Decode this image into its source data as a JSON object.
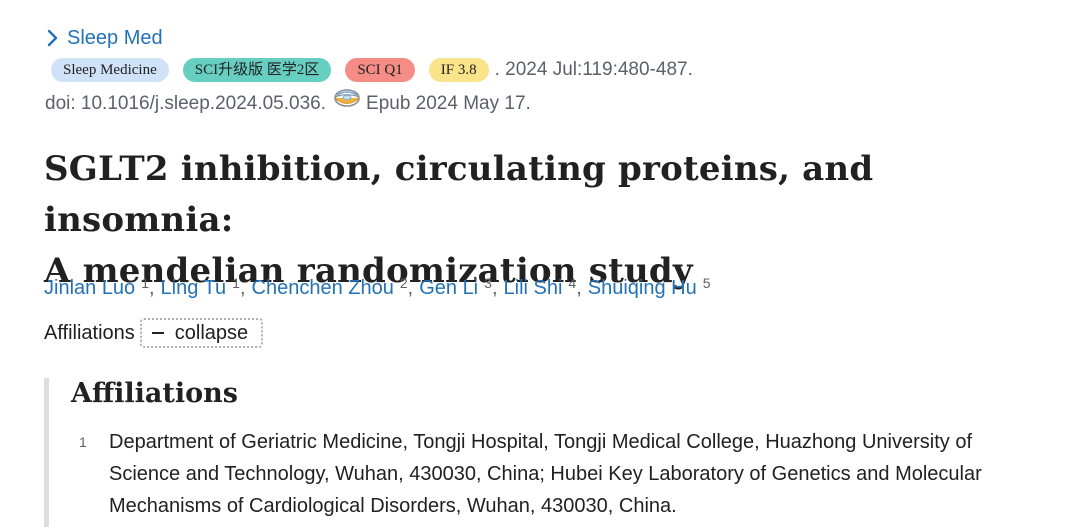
{
  "journal": {
    "name": "Sleep Med"
  },
  "badges": {
    "journal_full": "Sleep Medicine",
    "sci_zone": "SCI升级版 医学2区",
    "sci_quartile": "SCI Q1",
    "impact_factor": "IF 3.8"
  },
  "citation": {
    "date_volume_pages": ". 2024 Jul:119:480-487.",
    "doi": "doi: 10.1016/j.sleep.2024.05.036.",
    "epub": "Epub 2024 May 17."
  },
  "article": {
    "title_line1": "SGLT2 inhibition, circulating proteins, and insomnia:",
    "title_line2": "A mendelian randomization study"
  },
  "authors": [
    {
      "name": "Jinlan Luo",
      "aff": "1"
    },
    {
      "name": "Ling Tu",
      "aff": "1"
    },
    {
      "name": "Chenchen Zhou",
      "aff": "2"
    },
    {
      "name": "Gen Li",
      "aff": "3"
    },
    {
      "name": "Lili Shi",
      "aff": "4"
    },
    {
      "name": "Shuiqing Hu",
      "aff": "5"
    }
  ],
  "affiliations_toggle": {
    "label": "Affiliations",
    "button_label": "collapse"
  },
  "affiliations_panel": {
    "heading": "Affiliations",
    "items": [
      {
        "num": "1",
        "text": "Department of Geriatric Medicine, Tongji Hospital, Tongji Medical College, Huazhong University of Science and Technology, Wuhan, 430030, China; Hubei Key Laboratory of Genetics and Molecular Mechanisms of Cardiological Disorders, Wuhan, 430030, China."
      }
    ]
  },
  "colors": {
    "link": "#2372b8",
    "muted": "#5b616b",
    "badge_journal": "#cfe2f7",
    "badge_sci": "#66cfc2",
    "badge_q1": "#f58c86",
    "badge_if": "#fbe38a"
  },
  "icons": {
    "journal_expand": "chevron-right-icon",
    "full_text": "globe-icon",
    "collapse": "minus-icon"
  }
}
